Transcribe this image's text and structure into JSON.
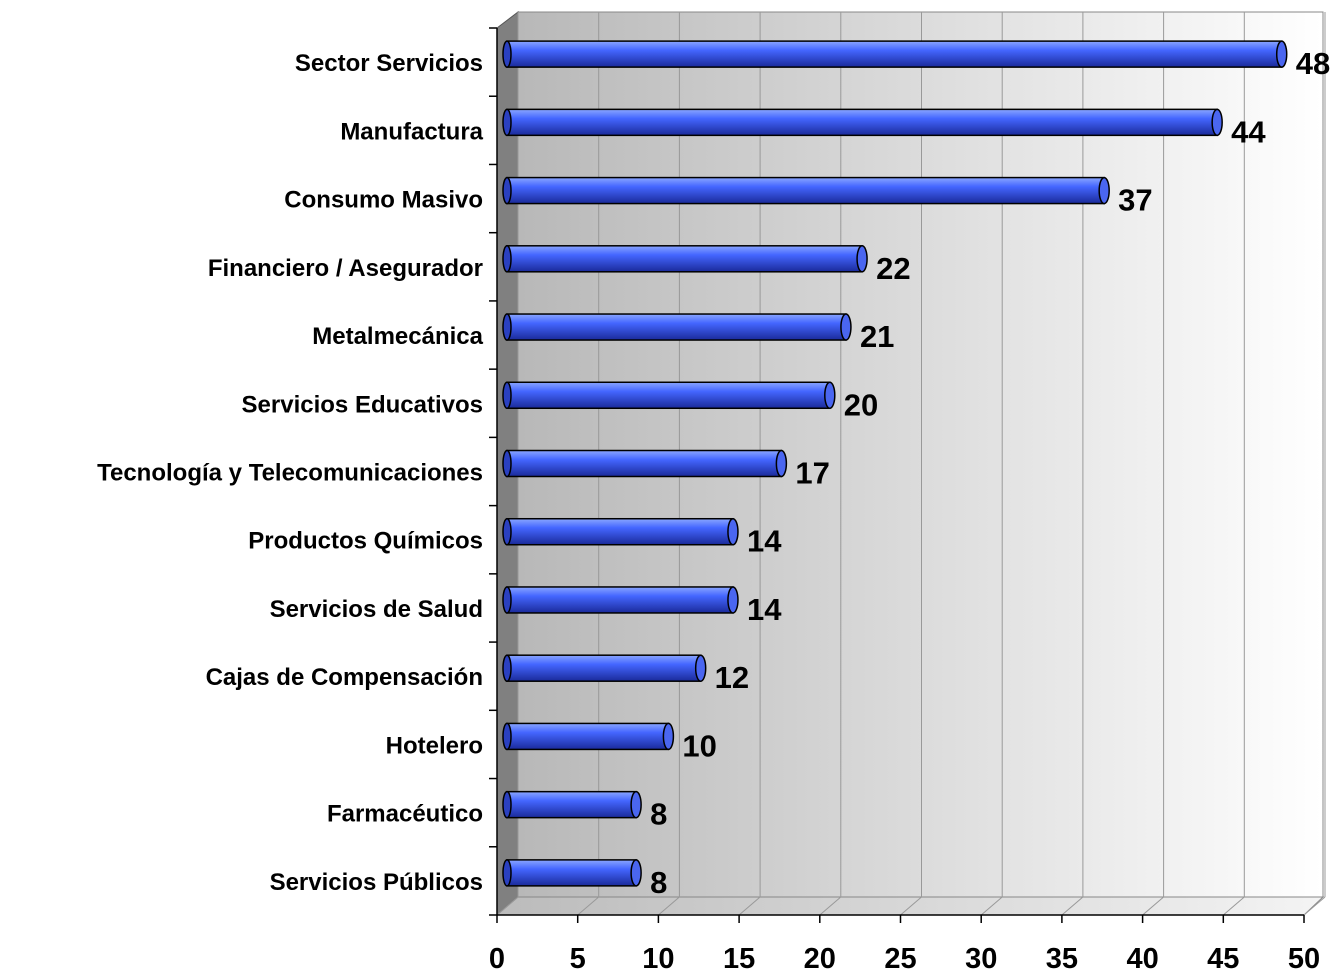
{
  "chart_data": {
    "type": "bar",
    "orientation": "horizontal",
    "categories": [
      "Sector Servicios",
      "Manufactura",
      "Consumo Masivo",
      "Financiero / Asegurador",
      "Metalmecánica",
      "Servicios Educativos",
      "Tecnología y Telecomunicaciones",
      "Productos Químicos",
      "Servicios de Salud",
      "Cajas de Compensación",
      "Hotelero",
      "Farmacéutico",
      "Servicios Públicos"
    ],
    "values": [
      48,
      44,
      37,
      22,
      21,
      20,
      17,
      14,
      14,
      12,
      10,
      8,
      8
    ],
    "color": "#3355ee",
    "xlim": [
      0,
      50
    ],
    "xticks": [
      0,
      5,
      10,
      15,
      20,
      25,
      30,
      35,
      40,
      45,
      50
    ],
    "grid": true
  }
}
